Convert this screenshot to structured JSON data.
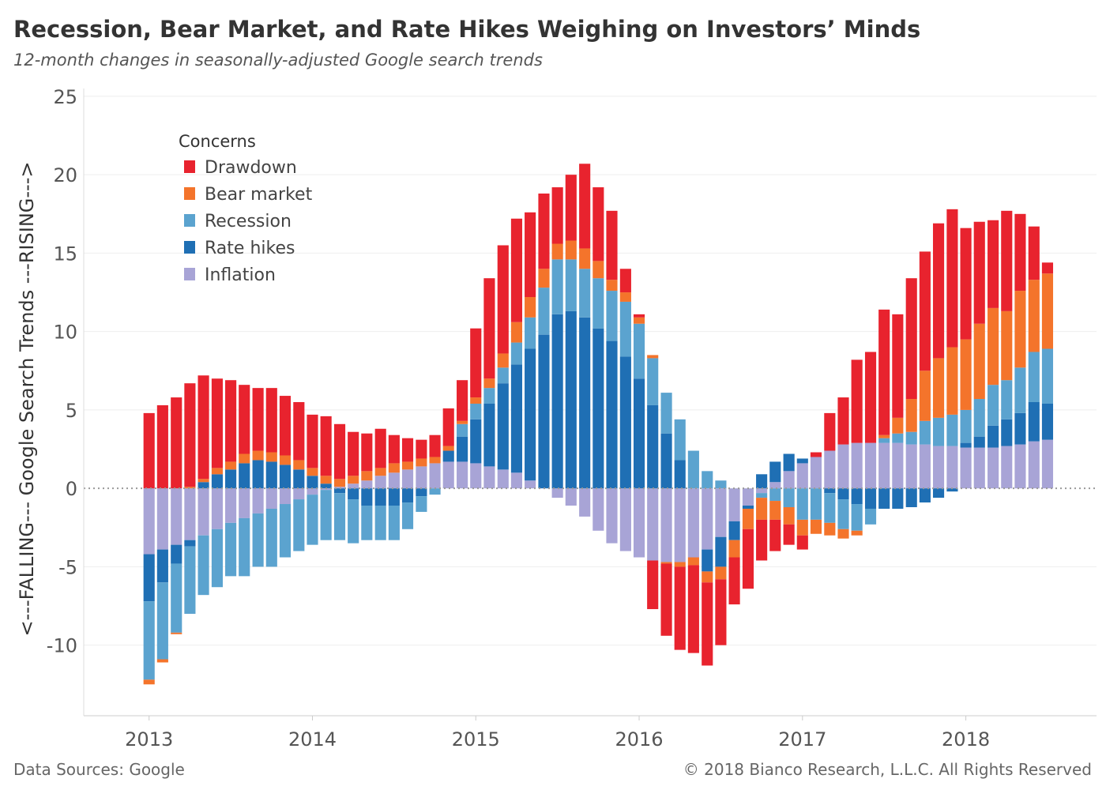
{
  "title": "Recession, Bear Market, and Rate Hikes Weighing on Investors’ Minds",
  "subtitle": "12-month changes in seasonally-adjusted Google search trends",
  "source": "Data Sources: Google",
  "copyright": "© 2018 Bianco Research, L.L.C. All Rights Reserved",
  "chart_data": {
    "type": "bar",
    "stacked": true,
    "ylabel": "<---FALLING--- Google Search Trends ---RISING--->",
    "ylim": [
      -14.5,
      25.5
    ],
    "yticks": [
      25,
      20,
      15,
      10,
      5,
      0,
      -5,
      -10
    ],
    "xticks": [
      "2013",
      "2014",
      "2015",
      "2016",
      "2017",
      "2018"
    ],
    "xlim": [
      2012.6,
      2018.8
    ],
    "x": [
      2013.0,
      2013.083,
      2013.167,
      2013.25,
      2013.333,
      2013.417,
      2013.5,
      2013.583,
      2013.667,
      2013.75,
      2013.833,
      2013.917,
      2014.0,
      2014.083,
      2014.167,
      2014.25,
      2014.333,
      2014.417,
      2014.5,
      2014.583,
      2014.667,
      2014.75,
      2014.833,
      2014.917,
      2015.0,
      2015.083,
      2015.167,
      2015.25,
      2015.333,
      2015.417,
      2015.5,
      2015.583,
      2015.667,
      2015.75,
      2015.833,
      2015.917,
      2016.0,
      2016.083,
      2016.167,
      2016.25,
      2016.333,
      2016.417,
      2016.5,
      2016.583,
      2016.667,
      2016.75,
      2016.833,
      2016.917,
      2017.0,
      2017.083,
      2017.167,
      2017.25,
      2017.333,
      2017.417,
      2017.5,
      2017.583,
      2017.667,
      2017.75,
      2017.833,
      2017.917,
      2018.0,
      2018.083,
      2018.167,
      2018.25,
      2018.333,
      2018.417,
      2018.5
    ],
    "legend": {
      "title": "Concerns",
      "position": "top-left"
    },
    "series": [
      {
        "name": "Inflation",
        "color": "#a8a4d6",
        "values": [
          -4.2,
          -3.9,
          -3.6,
          -3.3,
          -3.0,
          -2.6,
          -2.2,
          -1.9,
          -1.6,
          -1.3,
          -1.0,
          -0.7,
          -0.4,
          -0.1,
          0.1,
          0.3,
          0.5,
          0.8,
          1.0,
          1.2,
          1.4,
          1.6,
          1.7,
          1.7,
          1.6,
          1.4,
          1.2,
          1.0,
          0.5,
          0.0,
          -0.6,
          -1.1,
          -1.8,
          -2.7,
          -3.5,
          -4.0,
          -4.4,
          -4.6,
          -4.7,
          -4.7,
          -4.4,
          -3.9,
          -3.1,
          -2.1,
          -1.1,
          -0.3,
          0.4,
          1.1,
          1.6,
          2.0,
          2.4,
          2.8,
          2.9,
          2.9,
          2.9,
          2.9,
          2.8,
          2.8,
          2.7,
          2.7,
          2.6,
          2.6,
          2.6,
          2.7,
          2.8,
          3.0,
          3.1
        ]
      },
      {
        "name": "Rate hikes",
        "color": "#1f6fb4",
        "values": [
          -3.0,
          -2.1,
          -1.2,
          -0.4,
          0.4,
          0.9,
          1.2,
          1.6,
          1.8,
          1.7,
          1.5,
          1.2,
          0.8,
          0.3,
          -0.3,
          -0.7,
          -1.1,
          -1.1,
          -1.1,
          -0.9,
          -0.5,
          0.0,
          0.7,
          1.6,
          2.8,
          4.0,
          5.5,
          6.9,
          8.4,
          9.8,
          11.1,
          11.3,
          10.9,
          10.2,
          9.4,
          8.4,
          7.0,
          5.3,
          3.5,
          1.8,
          0.0,
          -1.4,
          -1.9,
          -1.2,
          -0.2,
          0.9,
          1.3,
          1.1,
          0.3,
          0.0,
          -0.3,
          -0.7,
          -1.0,
          -1.3,
          -1.3,
          -1.3,
          -1.2,
          -0.9,
          -0.6,
          -0.2,
          0.3,
          0.7,
          1.4,
          1.7,
          2.0,
          2.5,
          2.3
        ]
      },
      {
        "name": "Recession",
        "color": "#5ba3cf",
        "values": [
          -5.0,
          -4.9,
          -4.4,
          -4.3,
          -3.8,
          -3.7,
          -3.4,
          -3.7,
          -3.4,
          -3.7,
          -3.4,
          -3.3,
          -3.2,
          -3.2,
          -3.0,
          -2.8,
          -2.2,
          -2.2,
          -2.2,
          -1.7,
          -1.0,
          -0.4,
          0.0,
          0.8,
          1.0,
          1.0,
          1.0,
          1.4,
          2.0,
          3.0,
          3.5,
          3.3,
          3.1,
          3.2,
          3.2,
          3.5,
          3.5,
          3.0,
          2.6,
          2.6,
          2.4,
          1.1,
          0.5,
          0.0,
          0.0,
          -0.3,
          -0.8,
          -1.2,
          -2.0,
          -2.0,
          -1.9,
          -1.9,
          -1.7,
          -1.0,
          0.3,
          0.6,
          0.8,
          1.5,
          1.8,
          2.0,
          2.1,
          2.4,
          2.6,
          2.5,
          2.9,
          3.2,
          3.5
        ]
      },
      {
        "name": "Bear market",
        "color": "#f4742b",
        "values": [
          -0.3,
          -0.2,
          -0.1,
          0.1,
          0.2,
          0.4,
          0.5,
          0.6,
          0.6,
          0.6,
          0.6,
          0.6,
          0.5,
          0.5,
          0.5,
          0.5,
          0.6,
          0.5,
          0.6,
          0.5,
          0.5,
          0.4,
          0.3,
          0.2,
          0.4,
          0.6,
          0.9,
          1.3,
          1.3,
          1.2,
          1.0,
          1.2,
          1.3,
          1.1,
          0.7,
          0.6,
          0.4,
          0.2,
          -0.1,
          -0.3,
          -0.5,
          -0.7,
          -0.8,
          -1.1,
          -1.3,
          -1.4,
          -1.2,
          -1.1,
          -1.0,
          -0.9,
          -0.8,
          -0.6,
          -0.3,
          0.0,
          0.2,
          1.0,
          2.1,
          3.2,
          3.8,
          4.3,
          4.5,
          4.8,
          4.9,
          4.4,
          4.9,
          4.6,
          4.8
        ]
      },
      {
        "name": "Drawdown",
        "color": "#e8232e",
        "values": [
          4.8,
          5.3,
          5.8,
          6.6,
          6.6,
          5.7,
          5.2,
          4.4,
          4.0,
          4.1,
          3.8,
          3.7,
          3.4,
          3.8,
          3.5,
          2.8,
          2.4,
          2.5,
          1.8,
          1.5,
          1.2,
          1.4,
          2.4,
          2.6,
          4.4,
          6.4,
          6.9,
          6.6,
          5.4,
          4.8,
          3.6,
          4.2,
          5.4,
          4.7,
          4.4,
          1.5,
          0.2,
          -3.1,
          -4.6,
          -5.3,
          -5.6,
          -5.3,
          -4.2,
          -3.0,
          -3.8,
          -2.6,
          -2.0,
          -1.3,
          -0.9,
          0.3,
          2.4,
          3.0,
          5.3,
          5.8,
          8.0,
          6.6,
          7.7,
          7.6,
          8.6,
          8.8,
          7.1,
          6.5,
          5.6,
          6.4,
          4.9,
          3.4,
          0.7
        ]
      }
    ]
  }
}
